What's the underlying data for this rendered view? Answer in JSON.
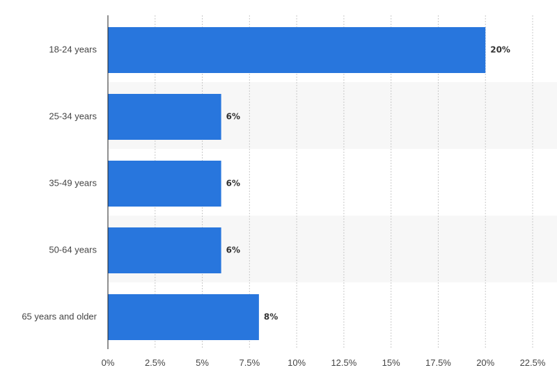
{
  "chart_data": {
    "type": "bar",
    "orientation": "horizontal",
    "categories": [
      "18-24 years",
      "25-34 years",
      "35-49 years",
      "50-64 years",
      "65 years and older"
    ],
    "values": [
      20,
      6,
      6,
      6,
      8
    ],
    "value_labels": [
      "20%",
      "6%",
      "6%",
      "6%",
      "8%"
    ],
    "x_ticks": [
      0,
      2.5,
      5,
      7.5,
      10,
      12.5,
      15,
      17.5,
      20,
      22.5
    ],
    "x_tick_labels": [
      "0%",
      "2.5%",
      "5%",
      "7.5%",
      "10%",
      "12.5%",
      "15%",
      "17.5%",
      "20%",
      "22.5%"
    ],
    "xlim": [
      0,
      22.5
    ],
    "title": "",
    "xlabel": "",
    "ylabel": "",
    "grid": true,
    "legend": "none",
    "colors": {
      "bar": "#2876dd",
      "band": "#f7f7f7"
    }
  }
}
